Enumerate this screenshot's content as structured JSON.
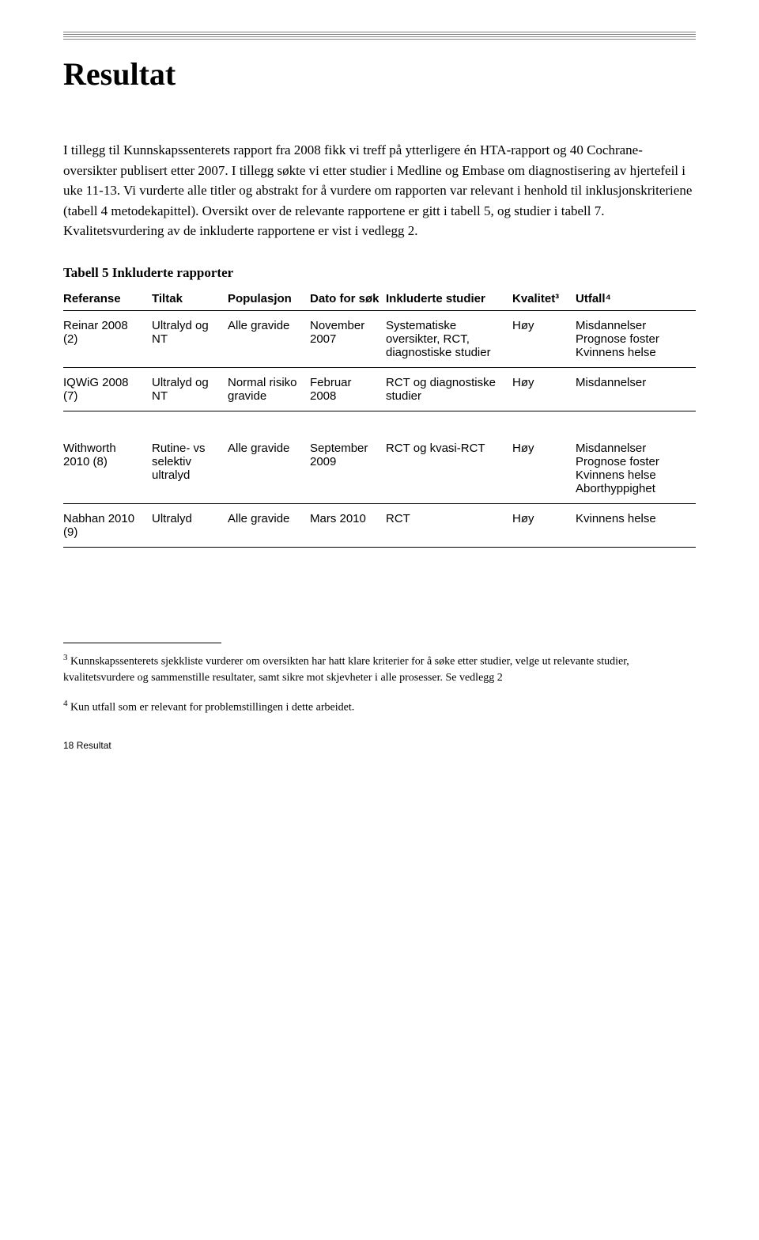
{
  "title": "Resultat",
  "body_paragraph": "I tillegg til Kunnskapssenterets rapport fra 2008 fikk vi treff på ytterligere én HTA-rapport og 40 Cochrane-oversikter publisert etter 2007. I tillegg søkte vi etter studier i Medline og Embase om diagnostisering av hjertefeil i uke 11-13. Vi vurderte alle titler og abstrakt for å vurdere om rapporten var relevant i henhold til inklusjonskriteriene (tabell 4 metodekapittel). Oversikt over de relevante rapportene er gitt i tabell 5, og studier i tabell 7. Kvalitetsvurdering av de inkluderte rapportene er vist i vedlegg 2.",
  "table_title": "Tabell 5 Inkluderte rapporter",
  "table": {
    "columns": [
      "Referanse",
      "Tiltak",
      "Populasjon",
      "Dato for søk",
      "Inkluderte studier",
      "Kvalitet³",
      "Utfall⁴"
    ],
    "rows": [
      {
        "ref": "Reinar 2008 (2)",
        "tiltak": "Ultralyd og NT",
        "pop": "Alle gravide",
        "dato": "November 2007",
        "ink": "Systematiske oversikter, RCT, diagnostiske studier",
        "kval": "Høy",
        "utfall": "Misdannelser Prognose foster Kvinnens helse"
      },
      {
        "ref": "IQWiG 2008 (7)",
        "tiltak": "Ultralyd og NT",
        "pop": "Normal risiko gravide",
        "dato": "Februar 2008",
        "ink": "RCT og diagnostiske studier",
        "kval": "Høy",
        "utfall": "Misdannelser"
      },
      {
        "ref": "Withworth 2010 (8)",
        "tiltak": "Rutine- vs selektiv ultralyd",
        "pop": "Alle gravide",
        "dato": "September 2009",
        "ink": "RCT og kvasi-RCT",
        "kval": "Høy",
        "utfall": "Misdannelser Prognose foster Kvinnens helse Aborthyppighet"
      },
      {
        "ref": "Nabhan 2010 (9)",
        "tiltak": "Ultralyd",
        "pop": "Alle gravide",
        "dato": "Mars 2010",
        "ink": "RCT",
        "kval": "Høy",
        "utfall": "Kvinnens helse"
      }
    ]
  },
  "footnote3_marker": "3",
  "footnote3": " Kunnskapssenterets sjekkliste vurderer om oversikten har hatt klare kriterier for å søke etter studier, velge ut relevante studier, kvalitetsvurdere og sammenstille resultater, samt sikre mot skjevheter i alle prosesser. Se vedlegg 2",
  "footnote4_marker": "4",
  "footnote4": " Kun utfall som er relevant for problemstillingen i dette arbeidet.",
  "page_number": "18",
  "page_section": " Resultat"
}
